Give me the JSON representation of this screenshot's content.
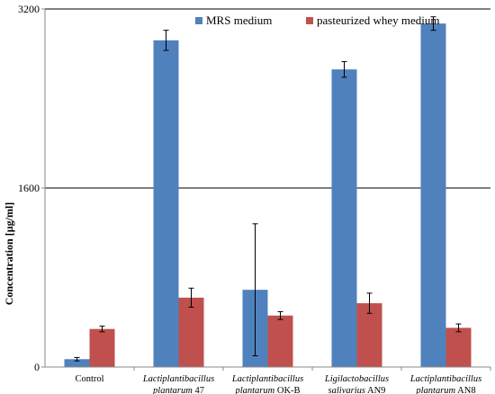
{
  "chart_data": {
    "type": "bar",
    "ylabel": "Concentration [µg/ml]",
    "xlabel": "",
    "ylim": [
      0,
      3200
    ],
    "yticks": [
      0,
      1600,
      3200
    ],
    "grid": "horizontal",
    "legend_position": "top-right",
    "categories": [
      {
        "lines": [
          {
            "italic": "",
            "plain": "Control"
          }
        ]
      },
      {
        "lines": [
          {
            "italic": "Lactiplantibacillus",
            "plain": ""
          },
          {
            "italic": "plantarum",
            "plain": " 47"
          }
        ]
      },
      {
        "lines": [
          {
            "italic": "Lactiplantibacillus",
            "plain": ""
          },
          {
            "italic": "plantarum",
            "plain": " OK-B"
          }
        ]
      },
      {
        "lines": [
          {
            "italic": "Ligilactobacillus",
            "plain": ""
          },
          {
            "italic": "salivarius",
            "plain": " AN9"
          }
        ]
      },
      {
        "lines": [
          {
            "italic": "Lactiplantibacillus",
            "plain": ""
          },
          {
            "italic": "plantarum",
            "plain": " AN8"
          }
        ]
      }
    ],
    "series": [
      {
        "name": "MRS medium",
        "color": "#4f81bd",
        "values": [
          70,
          2920,
          690,
          2660,
          3070
        ],
        "errors": [
          15,
          90,
          590,
          70,
          60
        ]
      },
      {
        "name": "pasteurized whey medium",
        "color": "#c0504d",
        "values": [
          340,
          620,
          460,
          570,
          350
        ],
        "errors": [
          25,
          85,
          35,
          90,
          35
        ]
      }
    ]
  }
}
